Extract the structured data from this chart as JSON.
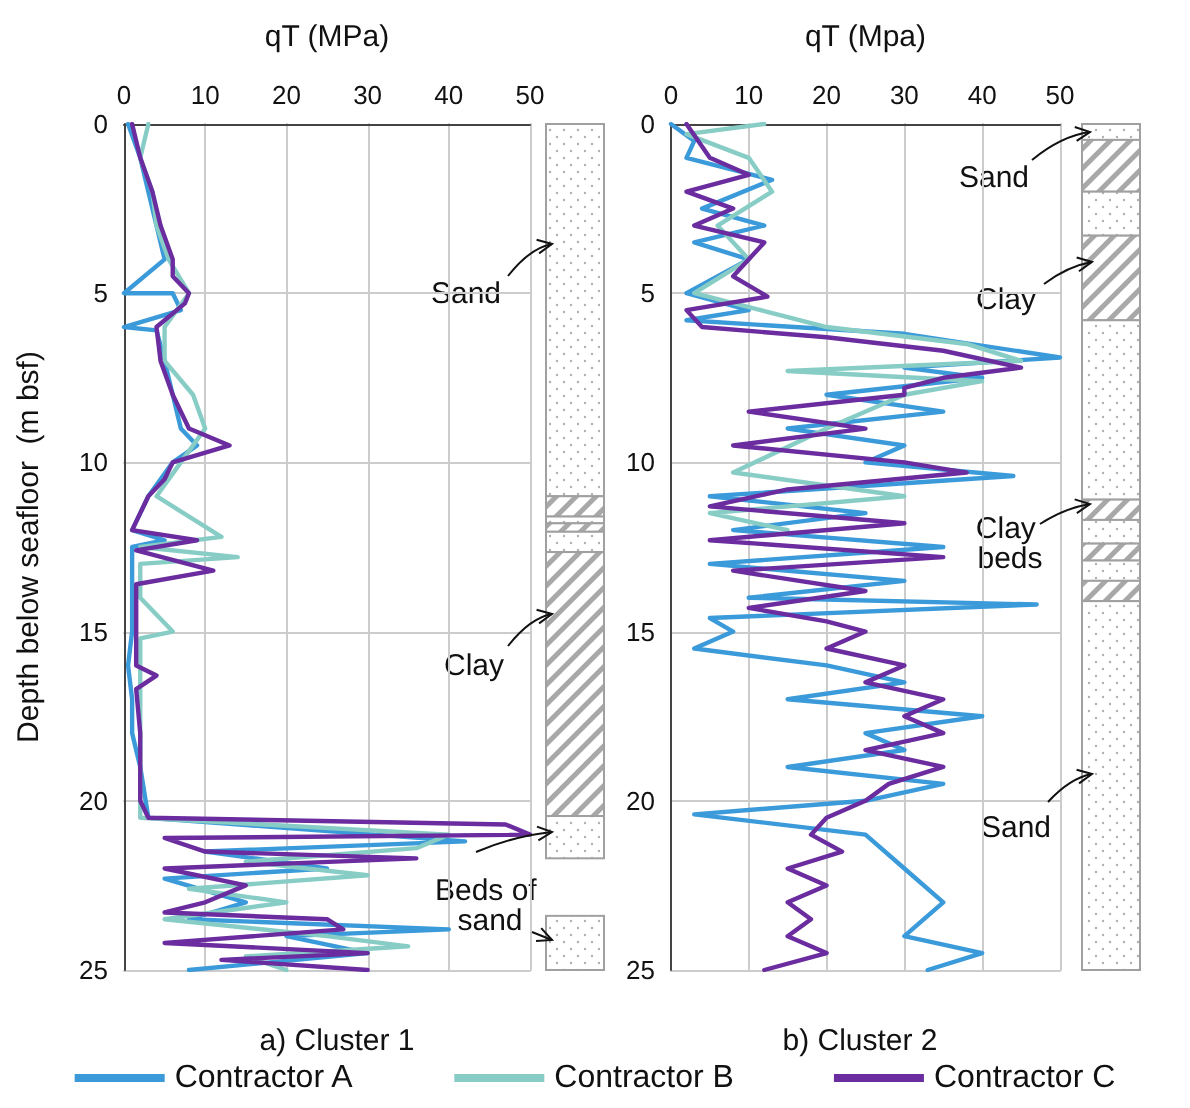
{
  "chart_data": [
    {
      "type": "line",
      "title": "a) Cluster 1",
      "xlabel": "qT (MPa)",
      "ylabel": "Depth below seafloor  (m bsf)",
      "xlim": [
        0,
        50
      ],
      "xticks": [
        0,
        10,
        20,
        30,
        40,
        50
      ],
      "ylim": [
        25,
        0
      ],
      "yticks": [
        0,
        5,
        10,
        15,
        20,
        25
      ],
      "grid": true,
      "legend": "bottom",
      "series": [
        {
          "name": "Contractor A",
          "color": "#3b9ad9",
          "x": [
            0.5,
            2,
            3,
            4,
            5,
            0,
            6,
            7,
            0,
            4,
            5,
            6,
            7,
            9,
            6,
            3,
            1,
            5,
            1,
            1,
            1,
            0.5,
            1,
            1,
            2,
            3,
            42,
            10,
            25,
            5,
            15,
            8,
            40,
            20,
            30,
            8
          ],
          "values": [
            0,
            1,
            2,
            3,
            4,
            5,
            5,
            5.5,
            6,
            6.1,
            7,
            8,
            9,
            9.5,
            10,
            11,
            12,
            12.3,
            12.5,
            13,
            15,
            16,
            17,
            18,
            19,
            20.5,
            21.2,
            21.5,
            22,
            22.3,
            23,
            23.5,
            23.8,
            24,
            24.5,
            25
          ]
        },
        {
          "name": "Contractor B",
          "color": "#87cdc6",
          "x": [
            3,
            2,
            3.5,
            4,
            5.5,
            8,
            5,
            5,
            8.5,
            10,
            7,
            4,
            12,
            2,
            14,
            2,
            2,
            6,
            2,
            2,
            2,
            2,
            40,
            36,
            15,
            30,
            8,
            20,
            5,
            25,
            35,
            15,
            20
          ],
          "values": [
            0,
            1,
            2,
            3,
            4,
            5,
            6,
            7,
            8,
            9,
            10,
            11,
            12.2,
            12.5,
            12.8,
            13,
            14,
            15,
            15.2,
            17,
            19,
            20.5,
            21,
            21.4,
            21.8,
            22.2,
            22.6,
            23,
            23.5,
            24,
            24.3,
            24.6,
            25
          ]
        },
        {
          "name": "Contractor C",
          "color": "#6a2c9e",
          "x": [
            1,
            2,
            3.5,
            4.5,
            6,
            6,
            8,
            7.5,
            4,
            4.5,
            6,
            8,
            13,
            6,
            5,
            3,
            2,
            1,
            9,
            1.5,
            11,
            1.5,
            1.5,
            1.5,
            1.5,
            4,
            1.5,
            2,
            2,
            2,
            3,
            47,
            50,
            5,
            10,
            36,
            5,
            15,
            10,
            5,
            25,
            27,
            5,
            30,
            12,
            30
          ],
          "values": [
            0,
            1,
            2,
            3,
            4,
            4.5,
            5,
            5.3,
            6,
            7,
            8,
            9,
            9.5,
            10,
            10.5,
            11,
            11.5,
            12,
            12.3,
            12.6,
            13.2,
            13.6,
            14,
            15,
            16,
            16.3,
            16.7,
            18,
            19,
            20,
            20.5,
            20.7,
            21,
            21.1,
            21.5,
            21.7,
            22,
            22.5,
            23,
            23.3,
            23.5,
            23.8,
            24.2,
            24.5,
            24.7,
            25
          ]
        }
      ],
      "annotations": [
        "Sand",
        "Clay",
        "Beds of sand"
      ]
    },
    {
      "type": "line",
      "title": "b) Cluster 2",
      "xlabel": "qT (Mpa)",
      "xlim": [
        0,
        50
      ],
      "xticks": [
        0,
        10,
        20,
        30,
        40,
        50
      ],
      "ylim": [
        25,
        0
      ],
      "yticks": [
        0,
        5,
        10,
        15,
        20,
        25
      ],
      "grid": true,
      "series": [
        {
          "color": "#3b9ad9",
          "x": [
            0,
            3,
            2,
            13,
            4,
            12,
            3,
            10,
            2,
            10,
            2,
            30,
            50,
            30,
            40,
            20,
            35,
            15,
            30,
            25,
            44,
            5,
            25,
            8,
            35,
            5,
            30,
            10,
            47,
            5,
            8,
            3,
            20,
            30,
            15,
            40,
            25,
            30,
            15,
            35,
            25,
            3,
            25,
            30,
            35,
            30,
            40,
            33
          ],
          "values": [
            0,
            0.5,
            1,
            1.65,
            2.5,
            3,
            3.5,
            4,
            5,
            5.5,
            5.8,
            6.2,
            6.9,
            7.2,
            7.5,
            8,
            8.5,
            9,
            9.5,
            10,
            10.4,
            11,
            11.5,
            12,
            12.5,
            13,
            13.5,
            14,
            14.2,
            14.6,
            15,
            15.5,
            16,
            16.5,
            17,
            17.5,
            18,
            18.5,
            19,
            19.5,
            20,
            20.4,
            21,
            22,
            23,
            24,
            24.5,
            25
          ]
        },
        {
          "color": "#87cdc6",
          "x": [
            12,
            2,
            10,
            13,
            6,
            10,
            3,
            20,
            38,
            45,
            15,
            40,
            30,
            20,
            8,
            30,
            5,
            15
          ],
          "values": [
            0,
            0.3,
            1,
            2,
            3,
            4,
            5,
            6,
            6.5,
            7,
            7.3,
            7.6,
            8,
            9,
            10.3,
            11,
            11.5,
            12
          ]
        },
        {
          "color": "#6a2c9e",
          "x": [
            2,
            5,
            10,
            2,
            8,
            3,
            12,
            8,
            12.4,
            2,
            4,
            20,
            35,
            45,
            35,
            30,
            30,
            10,
            25,
            8,
            30,
            38,
            15,
            5,
            30,
            5,
            35,
            8,
            25,
            10,
            20,
            25,
            20,
            30,
            25,
            35,
            30,
            35,
            25,
            35,
            28,
            25,
            20,
            18,
            22,
            15,
            20,
            15,
            18,
            15,
            20,
            12
          ],
          "values": [
            0,
            1,
            1.5,
            2,
            2.5,
            3,
            3.5,
            4.5,
            5.1,
            5.5,
            6,
            6.3,
            6.7,
            7.2,
            7.5,
            7.8,
            8,
            8.5,
            9,
            9.5,
            10,
            10.3,
            10.8,
            11.3,
            11.8,
            12.3,
            12.8,
            13.2,
            13.8,
            14.3,
            14.7,
            15,
            15.5,
            16,
            16.5,
            17,
            17.5,
            18,
            18.5,
            19,
            19.5,
            20,
            20.5,
            21,
            21.5,
            22,
            22.5,
            23,
            23.5,
            24,
            24.5,
            25
          ]
        }
      ],
      "annotations": [
        "Sand",
        "Clay",
        "Clay beds",
        "Sand"
      ]
    }
  ]
}
